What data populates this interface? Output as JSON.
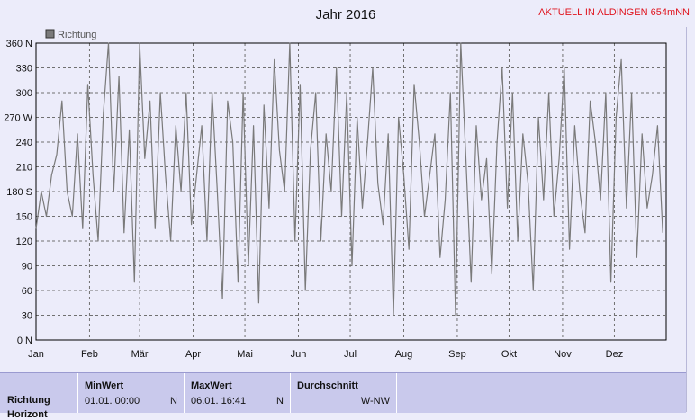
{
  "header": {
    "title": "Jahr 2016",
    "brand": "AKTUELL IN ALDINGEN 654mNN"
  },
  "chart_data": {
    "type": "line",
    "title": "Jahr 2016",
    "xlabel": "",
    "ylabel": "",
    "xlim": [
      0,
      365
    ],
    "ylim": [
      0,
      360
    ],
    "yticks": [
      0,
      30,
      60,
      90,
      120,
      150,
      180,
      210,
      240,
      270,
      300,
      330,
      360
    ],
    "ytick_labels": [
      "0 N",
      "30",
      "60",
      "90",
      "120",
      "150",
      "180 S",
      "210",
      "240",
      "270 W",
      "300",
      "330",
      "360 N"
    ],
    "month_labels": [
      "Jan",
      "Feb",
      "Mär",
      "Apr",
      "Mai",
      "Jun",
      "Jul",
      "Aug",
      "Sep",
      "Okt",
      "Nov",
      "Dez"
    ],
    "month_starts": [
      0,
      31,
      60,
      91,
      121,
      152,
      182,
      213,
      244,
      274,
      305,
      335
    ],
    "grid": true,
    "legend": "top-left",
    "series": [
      {
        "name": "Richtung",
        "color": "#7a7a7a",
        "x": [
          0,
          3,
          6,
          9,
          12,
          15,
          18,
          21,
          24,
          27,
          30,
          33,
          36,
          39,
          42,
          45,
          48,
          51,
          54,
          57,
          60,
          63,
          66,
          69,
          72,
          75,
          78,
          81,
          84,
          87,
          90,
          93,
          96,
          99,
          102,
          105,
          108,
          111,
          114,
          117,
          120,
          123,
          126,
          129,
          132,
          135,
          138,
          141,
          144,
          147,
          150,
          153,
          156,
          159,
          162,
          165,
          168,
          171,
          174,
          177,
          180,
          183,
          186,
          189,
          192,
          195,
          198,
          201,
          204,
          207,
          210,
          213,
          216,
          219,
          222,
          225,
          228,
          231,
          234,
          237,
          240,
          243,
          246,
          249,
          252,
          255,
          258,
          261,
          264,
          267,
          270,
          273,
          276,
          279,
          282,
          285,
          288,
          291,
          294,
          297,
          300,
          303,
          306,
          309,
          312,
          315,
          318,
          321,
          324,
          327,
          330,
          333,
          336,
          339,
          342,
          345,
          348,
          351,
          354,
          357,
          360,
          363
        ],
        "y": [
          135,
          180,
          150,
          200,
          225,
          290,
          180,
          150,
          250,
          135,
          310,
          200,
          120,
          275,
          360,
          180,
          320,
          130,
          255,
          70,
          360,
          220,
          290,
          135,
          300,
          200,
          120,
          260,
          180,
          300,
          140,
          200,
          260,
          120,
          300,
          180,
          50,
          290,
          240,
          70,
          300,
          90,
          260,
          45,
          285,
          160,
          340,
          230,
          180,
          360,
          120,
          310,
          60,
          230,
          300,
          120,
          250,
          180,
          330,
          150,
          300,
          90,
          270,
          160,
          240,
          330,
          190,
          140,
          250,
          30,
          270,
          200,
          110,
          310,
          240,
          150,
          200,
          250,
          100,
          170,
          300,
          30,
          360,
          220,
          70,
          260,
          170,
          220,
          80,
          240,
          330,
          160,
          300,
          120,
          250,
          190,
          60,
          270,
          170,
          300,
          150,
          220,
          330,
          110,
          260,
          180,
          130,
          290,
          240,
          170,
          300,
          70,
          270,
          340,
          160,
          300,
          100,
          250,
          160,
          200,
          260,
          130
        ]
      }
    ]
  },
  "stats": {
    "row_label": "Richtung",
    "row_label2": "Horizont",
    "min": {
      "header": "MinWert",
      "date": "01.01.  00:00",
      "value": "N"
    },
    "max": {
      "header": "MaxWert",
      "date": "06.01.  16:41",
      "value": "N"
    },
    "avg": {
      "header": "Durchschnitt",
      "value": "W-NW"
    }
  },
  "colors": {
    "plot_bg": "#ececfa",
    "line": "#7a7a7a",
    "grid": "#707070",
    "brand": "#e0141e",
    "stats_bg": "#c9c9ec"
  }
}
